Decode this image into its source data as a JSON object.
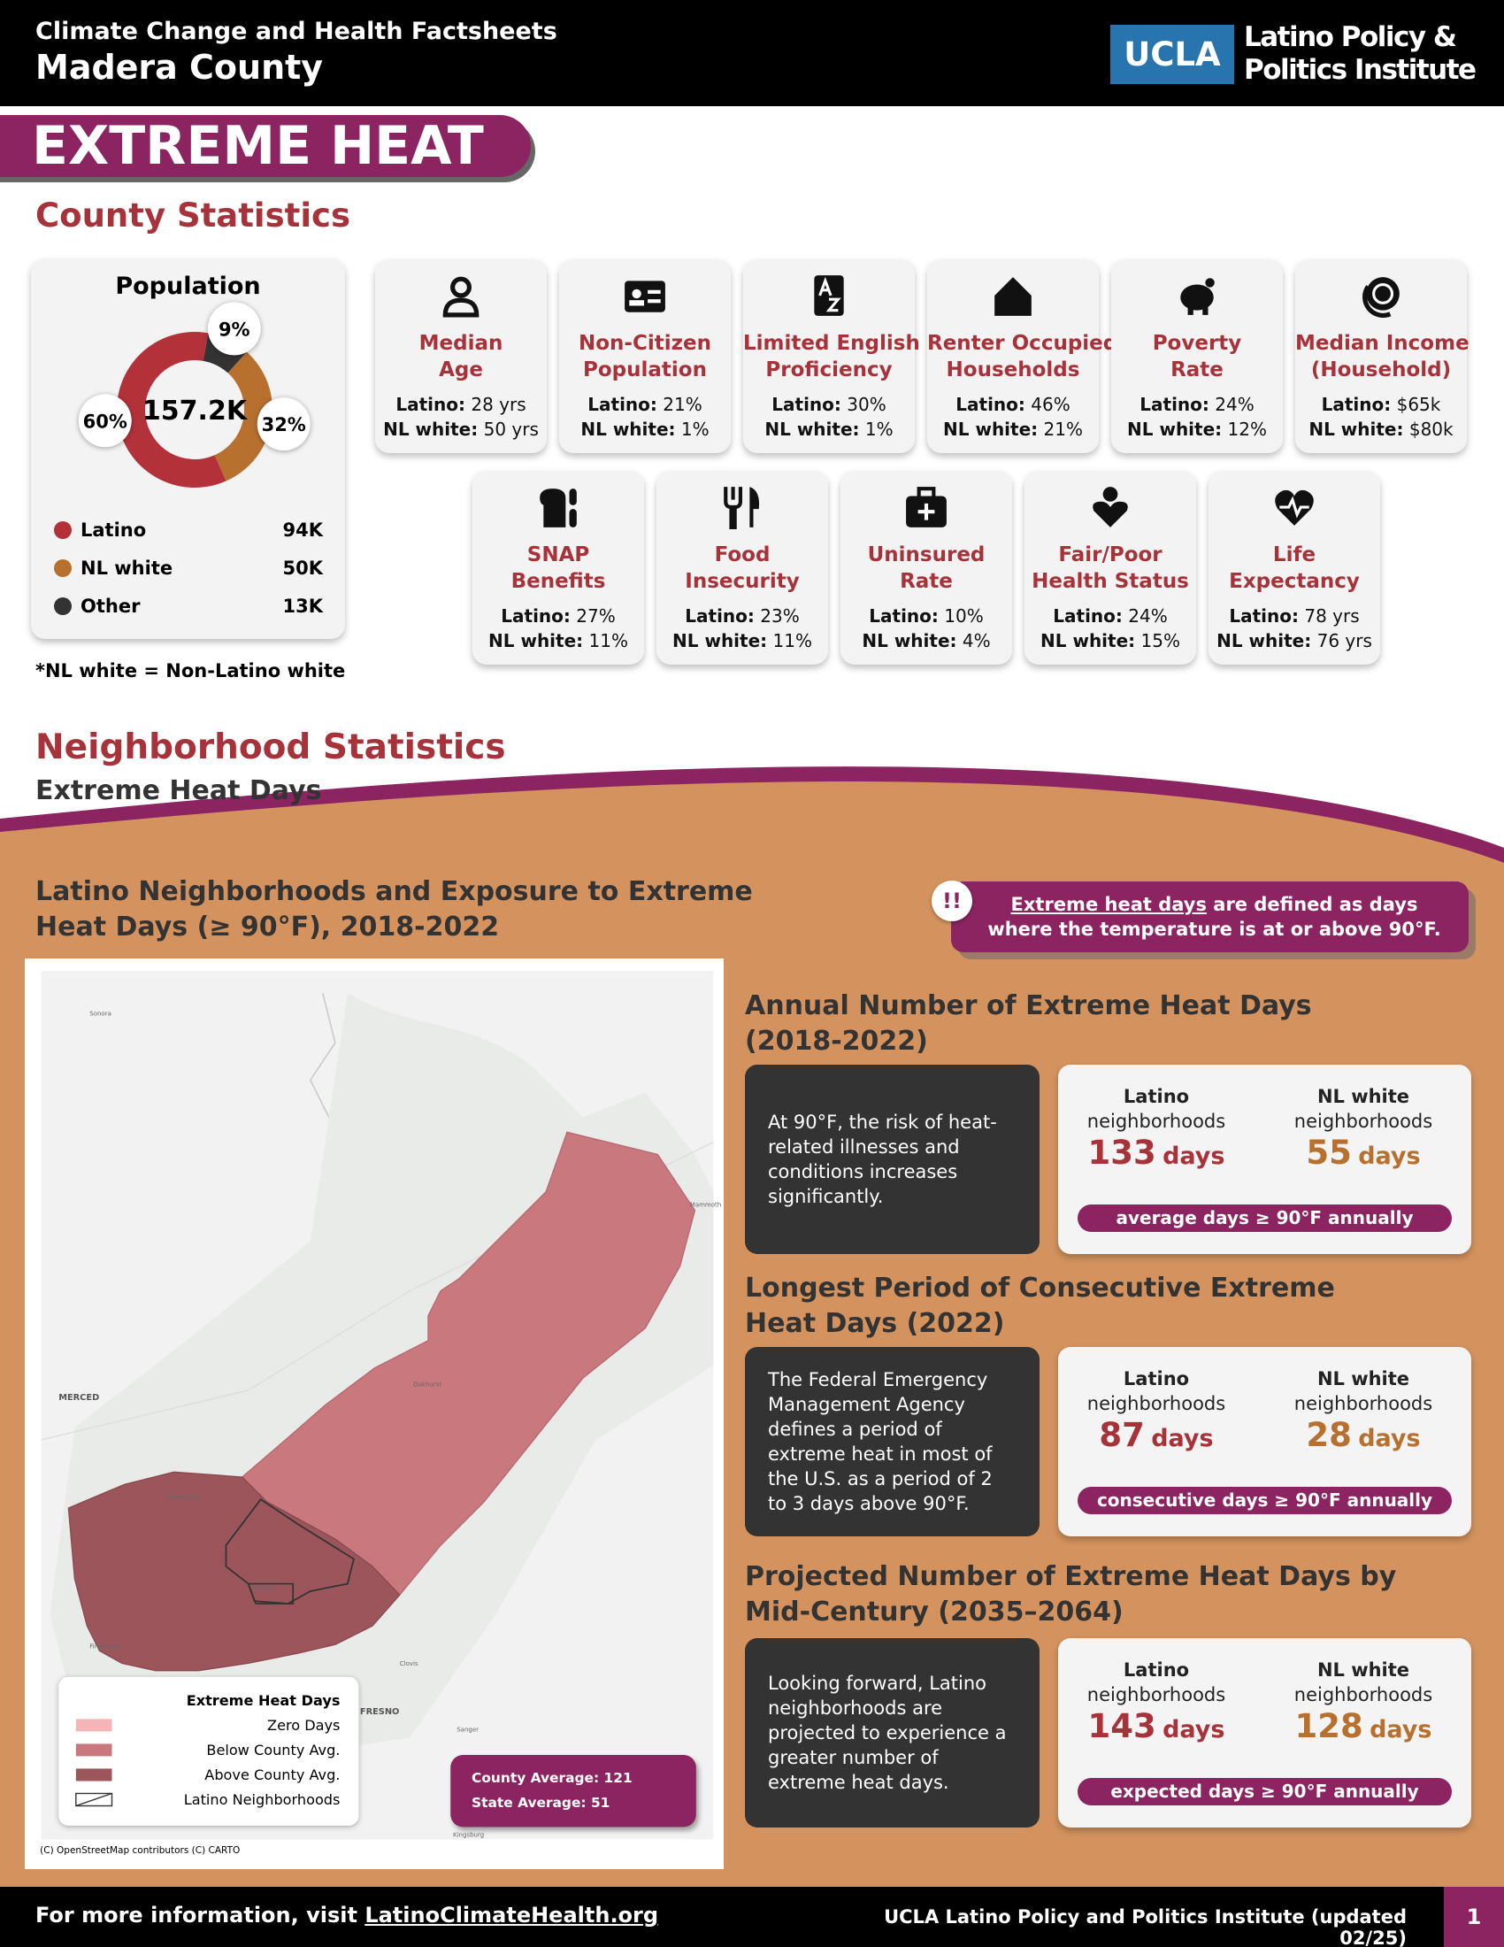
{
  "header": {
    "series_title": "Climate Change and Health Factsheets",
    "county": "Madera County",
    "logo_mark": "UCLA",
    "logo_name_lines": [
      "Latino Policy &",
      "Politics Institute"
    ]
  },
  "banner": "EXTREME HEAT",
  "county_statistics": {
    "title": "County Statistics",
    "footnote": "*NL white = Non-Latino white",
    "group_labels": {
      "latino": "Latino:",
      "nl_white": "NL white:"
    },
    "cards": [
      {
        "title_lines": [
          "Median",
          "Age"
        ],
        "latino": "28 yrs",
        "nl_white": "50 yrs"
      },
      {
        "title_lines": [
          "Non-Citizen",
          "Population"
        ],
        "latino": "21%",
        "nl_white": "1%"
      },
      {
        "title_lines": [
          "Limited English",
          "Proficiency"
        ],
        "latino": "30%",
        "nl_white": "1%"
      },
      {
        "title_lines": [
          "Renter Occupied",
          "Households"
        ],
        "latino": "46%",
        "nl_white": "21%"
      },
      {
        "title_lines": [
          "Poverty",
          "Rate"
        ],
        "latino": "24%",
        "nl_white": "12%"
      },
      {
        "title_lines": [
          "Median Income",
          "(Household)"
        ],
        "latino": "$65k",
        "nl_white": "$80k"
      },
      {
        "title_lines": [
          "SNAP",
          "Benefits"
        ],
        "latino": "27%",
        "nl_white": "11%"
      },
      {
        "title_lines": [
          "Food",
          "Insecurity"
        ],
        "latino": "23%",
        "nl_white": "11%"
      },
      {
        "title_lines": [
          "Uninsured",
          "Rate"
        ],
        "latino": "10%",
        "nl_white": "4%"
      },
      {
        "title_lines": [
          "Fair/Poor",
          "Health Status"
        ],
        "latino": "24%",
        "nl_white": "15%"
      },
      {
        "title_lines": [
          "Life",
          "Expectancy"
        ],
        "latino": "78 yrs",
        "nl_white": "76 yrs"
      }
    ]
  },
  "chart_data": {
    "type": "pie",
    "title": "Population",
    "center_label": "157.2K",
    "categories": [
      "Latino",
      "NL white",
      "Other"
    ],
    "values": [
      60,
      32,
      9
    ],
    "value_labels": [
      "60%",
      "32%",
      "9%"
    ],
    "counts": [
      "94K",
      "50K",
      "13K"
    ],
    "colors": [
      "#b3323a",
      "#b8702f",
      "#333333"
    ]
  },
  "neighborhood_statistics": {
    "title": "Neighborhood Statistics",
    "subtitle": "Extreme Heat Days",
    "map_title": "Latino Neighborhoods and Exposure to Extreme Heat Days (≥ 90°F), 2018-2022",
    "alert_icon": "!!",
    "definition": {
      "term": "Extreme heat days",
      "text": "are defined as days where the temperature is at or above 90°F."
    },
    "map": {
      "legend_title": "Extreme Heat Days",
      "legend_items": [
        "Zero Days",
        "Below County Avg.",
        "Above County Avg.",
        "Latino Neighborhoods"
      ],
      "averages": [
        "County Average: 121",
        "State Average: 51"
      ],
      "attribution": "(C) OpenStreetMap contributors (C) CARTO",
      "places": [
        "Sonora",
        "MERCED",
        "Chowchilla",
        "Madera",
        "Firebaugh",
        "Clovis",
        "FRESNO",
        "Sanger",
        "Kingsburg",
        "Oakhurst",
        "Mammoth Lakes"
      ]
    },
    "column_labels": [
      {
        "bold": "Latino",
        "rest": "neighborhoods"
      },
      {
        "bold": "NL white",
        "rest": "neighborhoods"
      }
    ],
    "unit": "days",
    "sections": [
      {
        "title": "Annual Number of Extreme Heat Days (2018-2022)",
        "description": "At 90°F, the risk of heat-related illnesses and conditions increases significantly.",
        "latino": 133,
        "nl_white": 55,
        "caption": "average days ≥ 90°F annually"
      },
      {
        "title": "Longest Period of Consecutive Extreme Heat Days (2022)",
        "description": "The Federal Emergency Management Agency defines a period of extreme heat in most of the U.S. as a period of 2 to 3 days above 90°F.",
        "latino": 87,
        "nl_white": 28,
        "caption": "consecutive days ≥ 90°F annually"
      },
      {
        "title": "Projected Number of Extreme Heat Days by Mid-Century (2035–2064)",
        "description": "Looking forward, Latino neighborhoods are projected to experience a greater number of extreme heat days.",
        "latino": 143,
        "nl_white": 128,
        "caption": "expected days ≥ 90°F annually"
      }
    ]
  },
  "footer": {
    "prefix": "For more information, visit",
    "link": "LatinoClimateHealth.org",
    "credit": "UCLA Latino Policy and Politics Institute (updated 02/25)",
    "page": "1"
  }
}
